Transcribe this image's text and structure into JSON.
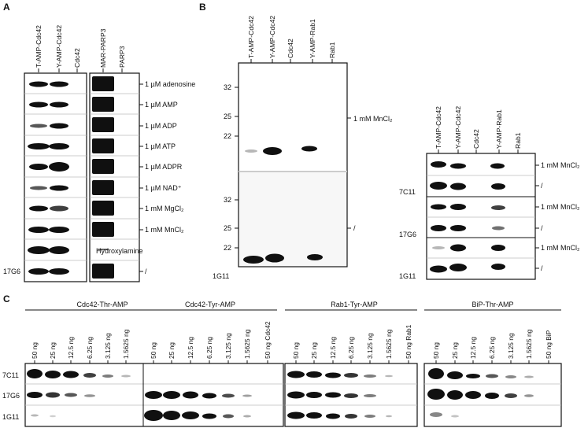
{
  "figure": {
    "panel_a": {
      "letter": "A",
      "lanes": [
        "T-AMP-Cdc42",
        "Y-AMP-Cdc42",
        "Cdc42",
        "MAR-PARP3",
        "PARP3"
      ],
      "rows": [
        "1 µM adenosine",
        "1 µM AMP",
        "1 µM ADP",
        "1 µM ATP",
        "1 µM ADPR",
        "1 µM NAD⁺",
        "1 mM MgCl₂",
        "1 mM MnCl₂",
        "Hydroxylamine",
        "/"
      ],
      "antibody": "17G6"
    },
    "panel_b": {
      "letter": "B",
      "left_blot": {
        "lanes": [
          "T-AMP-Cdc42",
          "Y-AMP-Cdc42",
          "Cdc42",
          "Y-AMP-Rab1",
          "Rab1"
        ],
        "mw_top": [
          "32",
          "25",
          "22"
        ],
        "mw_bottom": [
          "32",
          "25",
          "22"
        ],
        "cond_top": "1 mM MnCl₂",
        "cond_bottom": "/",
        "antibody": "1G11"
      },
      "right_blot": {
        "lanes": [
          "T-AMP-Cdc42",
          "Y-AMP-Cdc42",
          "Cdc42",
          "Y-AMP-Rab1",
          "Rab1"
        ],
        "conds": [
          "1 mM MnCl₂",
          "/",
          "1 mM MnCl₂",
          "/",
          "1 mM MnCl₂",
          "/"
        ],
        "antibodies": [
          "7C11",
          "17G6",
          "1G11"
        ]
      }
    },
    "panel_c": {
      "letter": "C",
      "groups": [
        {
          "title": "Cdc42-Thr-AMP",
          "lanes": [
            "50 ng",
            "25 ng",
            "12.5 ng",
            "6.25 ng",
            "3.125 ng",
            "1.5625 ng"
          ]
        },
        {
          "title": "Cdc42-Tyr-AMP",
          "lanes": [
            "50 ng",
            "25 ng",
            "12.5 ng",
            "6.25 ng",
            "3.125 ng",
            "1.5625 ng",
            "50 ng Cdc42"
          ]
        },
        {
          "title": "Rab1-Tyr-AMP",
          "lanes": [
            "50 ng",
            "25 ng",
            "12.5 ng",
            "6.25 ng",
            "3.125 ng",
            "1.5625 ng",
            "50 ng Rab1"
          ]
        },
        {
          "title": "BiP-Thr-AMP",
          "lanes": [
            "50 ng",
            "25 ng",
            "12.5 ng",
            "6.25 ng",
            "3.125 ng",
            "1.5625 ng",
            "50 ng BiP"
          ]
        }
      ],
      "antibodies": [
        "7C11",
        "17G6",
        "1G11"
      ]
    }
  }
}
